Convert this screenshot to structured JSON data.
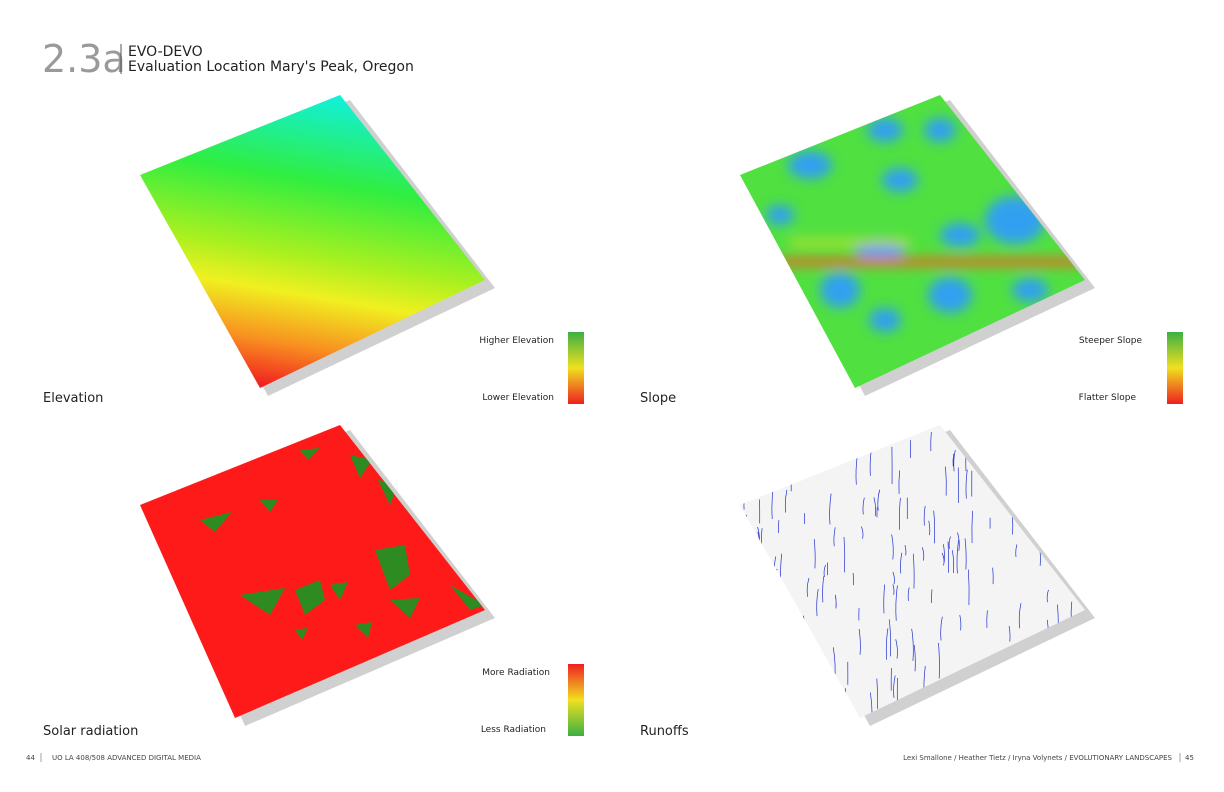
{
  "header": {
    "number": "2.3a",
    "title": "EVO-DEVO",
    "subtitle": "Evaluation Location Mary's Peak, Oregon"
  },
  "panels": [
    {
      "label": "Elevation",
      "legend_top": "Higher Elevation",
      "legend_bottom": "Lower Elevation"
    },
    {
      "label": "Slope",
      "legend_top": "Steeper Slope",
      "legend_bottom": "Flatter Slope"
    },
    {
      "label": "Solar radiation",
      "legend_top": "More Radiation",
      "legend_bottom": "Less Radiation"
    },
    {
      "label": "Runoffs"
    }
  ],
  "footer": {
    "left_page": "44",
    "left_text": "UO LA 408/508 ADVANCED DIGITAL MEDIA",
    "right_text": "Lexi Smallone / Heather Tietz / Iryna Volynets  /  EVOLUTIONARY LANDSCAPES",
    "right_page": "45"
  }
}
